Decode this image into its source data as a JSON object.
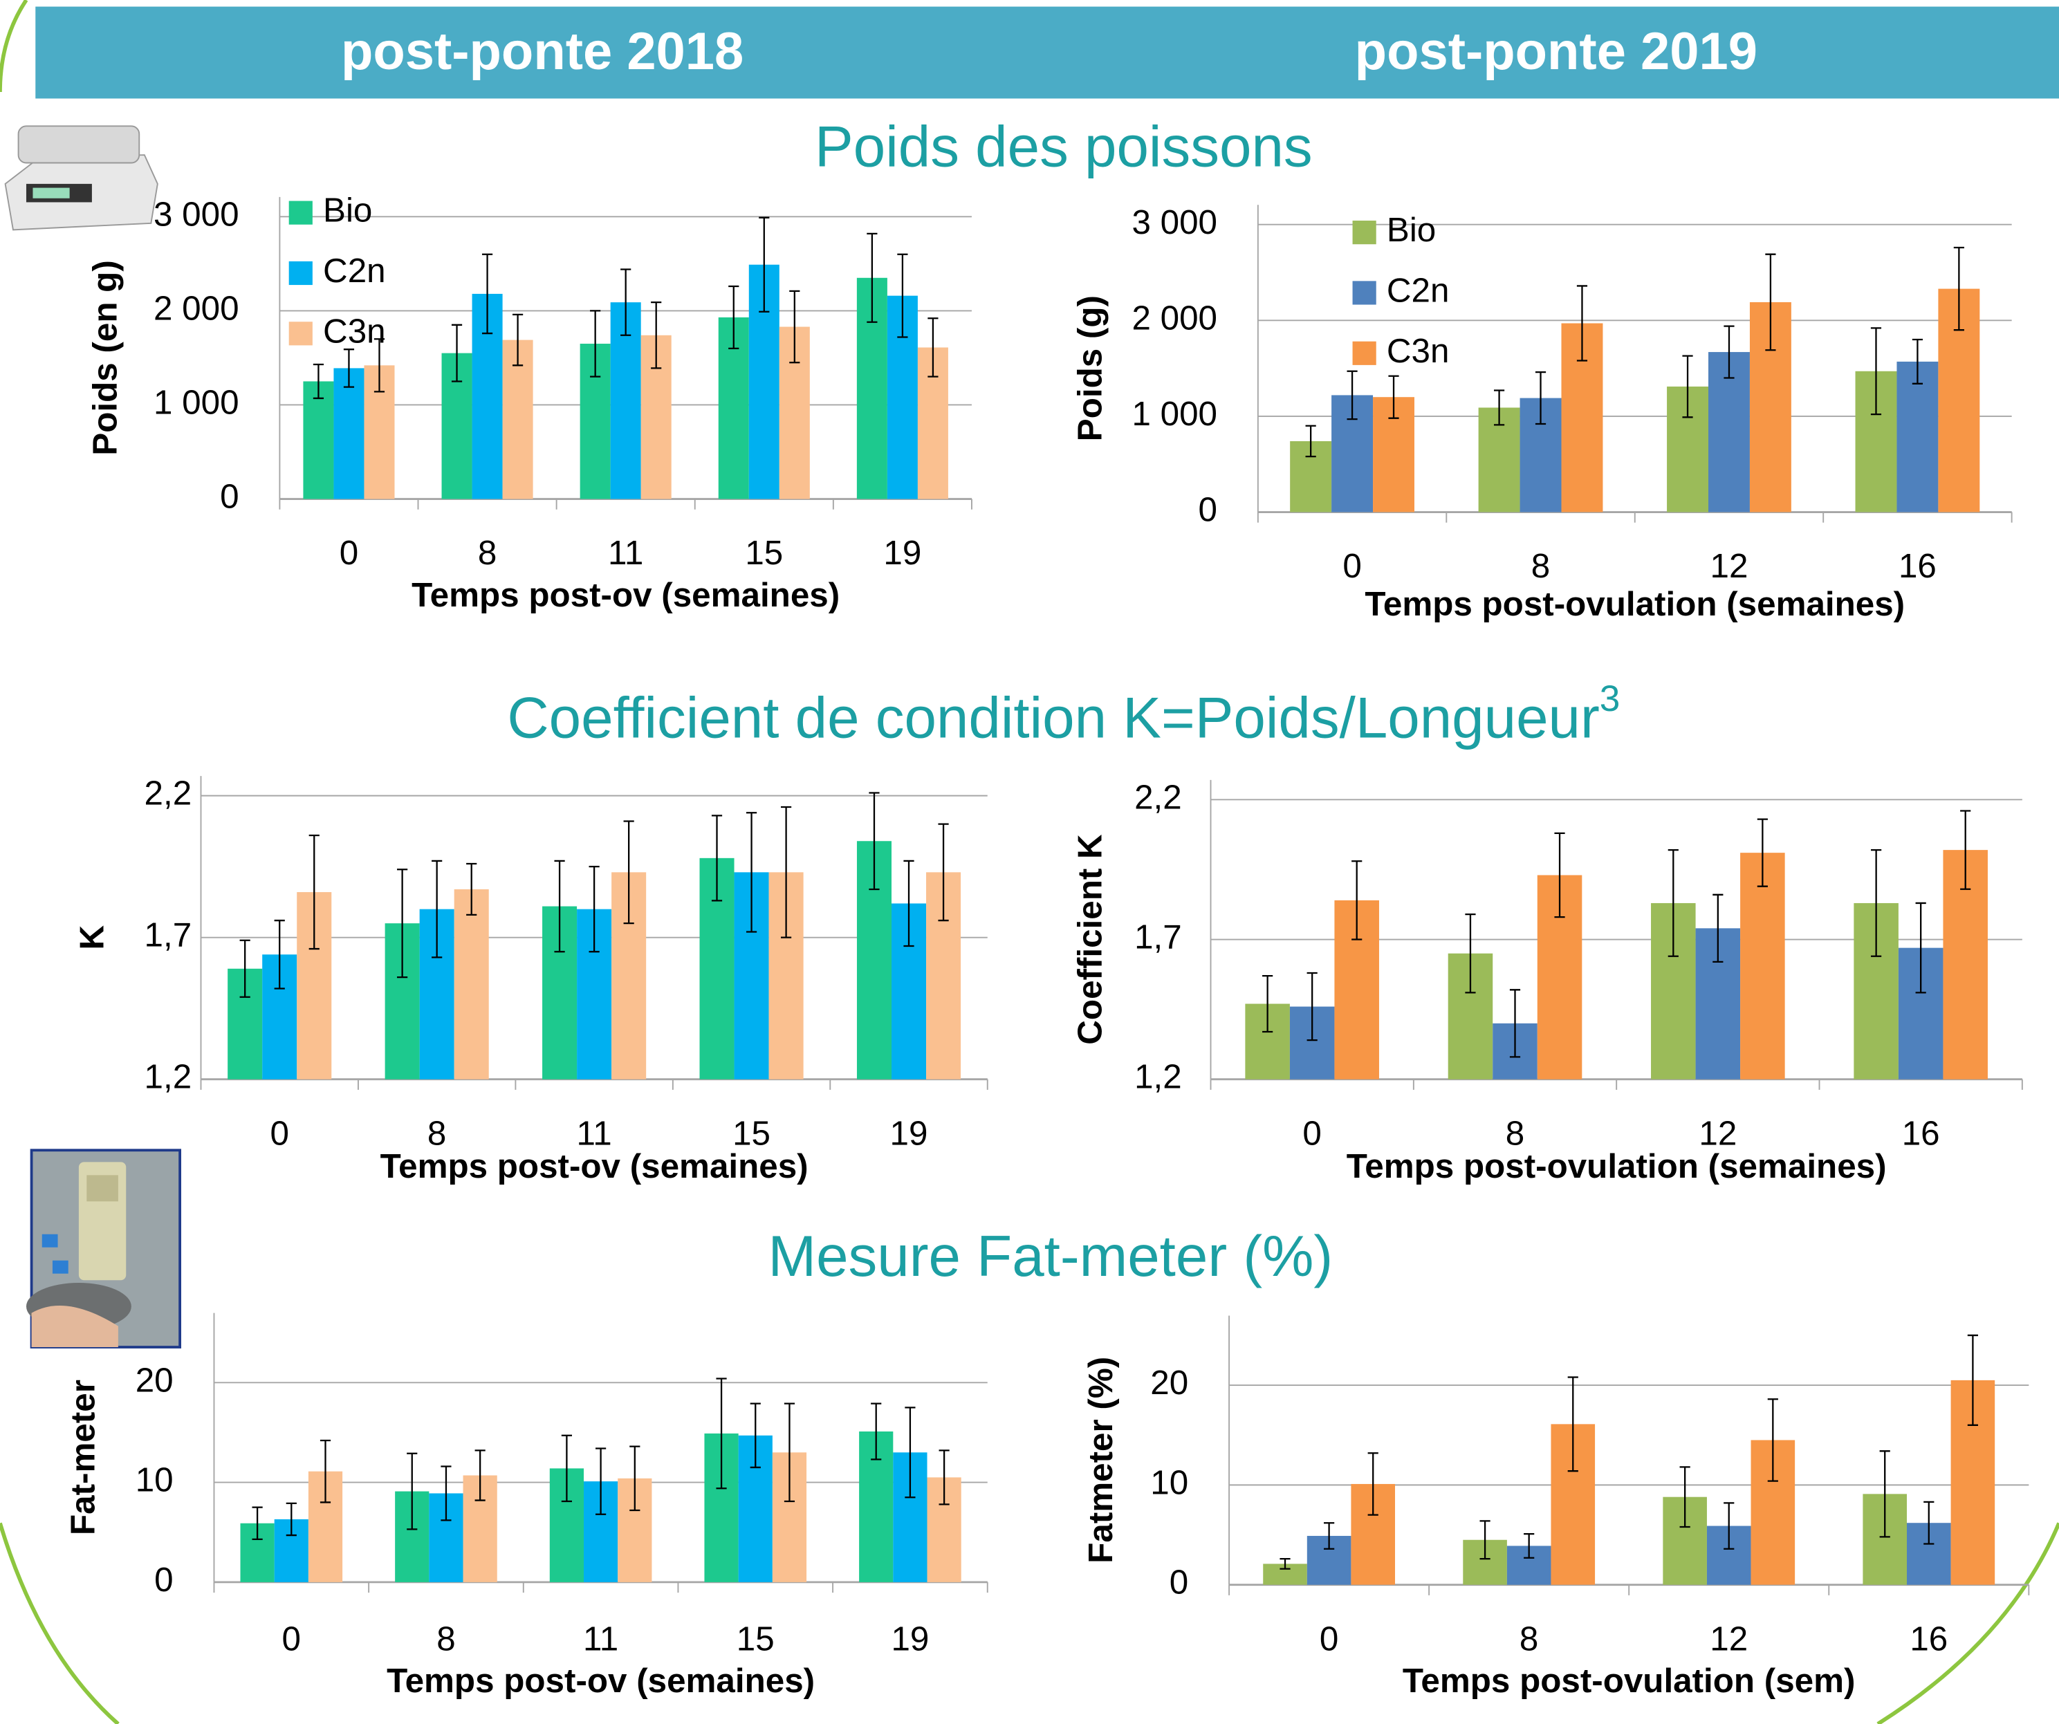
{
  "header": {
    "left": "post-ponte 2018",
    "right": "post-ponte 2019"
  },
  "sections": [
    {
      "title": "Poids des poissons"
    },
    {
      "title": "Coefficient de condition K=Poids/Longueur",
      "superscript": "3"
    },
    {
      "title": "Mesure Fat-meter (%)"
    }
  ],
  "chart_data": [
    {
      "type": "bar",
      "xlabel": "Temps post-ov (semaines)",
      "ylabel": "Poids (en g)",
      "categories": [
        "0",
        "8",
        "11",
        "15",
        "19"
      ],
      "series": [
        {
          "name": "Bio",
          "color": "#1dc98e",
          "values": [
            1250,
            1550,
            1650,
            1930,
            2350
          ],
          "errors": [
            180,
            300,
            350,
            330,
            470
          ]
        },
        {
          "name": "C2n",
          "color": "#00b0f0",
          "values": [
            1390,
            2180,
            2090,
            2490,
            2160
          ],
          "errors": [
            200,
            420,
            350,
            500,
            440
          ]
        },
        {
          "name": "C3n",
          "color": "#fac090",
          "values": [
            1420,
            1690,
            1740,
            1830,
            1610
          ],
          "errors": [
            280,
            270,
            350,
            380,
            310
          ]
        }
      ],
      "ylim": [
        0,
        3000
      ],
      "yticks": [
        0,
        {
          "value": 1000,
          "label": "1 000"
        },
        {
          "value": 2000,
          "label": "2 000"
        },
        {
          "value": 3000,
          "label": "3 000"
        }
      ],
      "grid": true,
      "legend": "top-left"
    },
    {
      "type": "bar",
      "xlabel": "Temps post-ovulation (semaines)",
      "ylabel": "Poids (g)",
      "categories": [
        "0",
        "8",
        "12",
        "16"
      ],
      "series": [
        {
          "name": "Bio",
          "color": "#9bbb59",
          "values": [
            740,
            1090,
            1310,
            1470
          ],
          "errors": [
            160,
            180,
            320,
            450
          ]
        },
        {
          "name": "C2n",
          "color": "#4f81bd",
          "values": [
            1220,
            1190,
            1670,
            1570
          ],
          "errors": [
            250,
            270,
            270,
            230
          ]
        },
        {
          "name": "C3n",
          "color": "#f79646",
          "values": [
            1200,
            1970,
            2190,
            2330
          ],
          "errors": [
            220,
            390,
            500,
            430
          ]
        }
      ],
      "ylim": [
        0,
        3000
      ],
      "yticks": [
        0,
        {
          "value": 1000,
          "label": "1 000"
        },
        {
          "value": 2000,
          "label": "2 000"
        },
        {
          "value": 3000,
          "label": "3 000"
        }
      ],
      "grid": true,
      "legend": "top-left"
    },
    {
      "type": "bar",
      "xlabel": "Temps post-ov (semaines)",
      "ylabel": "K",
      "categories": [
        "0",
        "8",
        "11",
        "15",
        "19"
      ],
      "series": [
        {
          "color": "#1dc98e",
          "values": [
            1.59,
            1.75,
            1.81,
            1.98,
            2.04
          ],
          "errors": [
            0.1,
            0.19,
            0.16,
            0.15,
            0.17
          ]
        },
        {
          "color": "#00b0f0",
          "values": [
            1.64,
            1.8,
            1.8,
            1.93,
            1.82
          ],
          "errors": [
            0.12,
            0.17,
            0.15,
            0.21,
            0.15
          ]
        },
        {
          "color": "#fac090",
          "values": [
            1.86,
            1.87,
            1.93,
            1.93,
            1.93
          ],
          "errors": [
            0.2,
            0.09,
            0.18,
            0.23,
            0.17
          ]
        }
      ],
      "ylim": [
        1.2,
        2.2
      ],
      "yticks": [
        {
          "value": 1.2,
          "label": "1,2"
        },
        {
          "value": 1.7,
          "label": "1,7"
        },
        {
          "value": 2.2,
          "label": "2,2"
        }
      ],
      "grid": true
    },
    {
      "type": "bar",
      "xlabel": "Temps post-ovulation (semaines)",
      "ylabel": "Coefficient K",
      "categories": [
        "0",
        "8",
        "12",
        "16"
      ],
      "series": [
        {
          "color": "#9bbb59",
          "values": [
            1.47,
            1.65,
            1.83,
            1.83
          ],
          "errors": [
            0.1,
            0.14,
            0.19,
            0.19
          ]
        },
        {
          "color": "#4f81bd",
          "values": [
            1.46,
            1.4,
            1.74,
            1.67
          ],
          "errors": [
            0.12,
            0.12,
            0.12,
            0.16
          ]
        },
        {
          "color": "#f79646",
          "values": [
            1.84,
            1.93,
            2.01,
            2.02
          ],
          "errors": [
            0.14,
            0.15,
            0.12,
            0.14
          ]
        }
      ],
      "ylim": [
        1.2,
        2.2
      ],
      "yticks": [
        {
          "value": 1.2,
          "label": "1,2"
        },
        {
          "value": 1.7,
          "label": "1,7"
        },
        {
          "value": 2.2,
          "label": "2,2"
        }
      ],
      "grid": true
    },
    {
      "type": "bar",
      "xlabel": "Temps post-ov (semaines)",
      "ylabel": "Fat-meter",
      "categories": [
        "0",
        "8",
        "11",
        "15",
        "19"
      ],
      "series": [
        {
          "color": "#1dc98e",
          "values": [
            5.9,
            9.1,
            11.4,
            14.9,
            15.1
          ],
          "errors": [
            1.6,
            3.8,
            3.3,
            5.5,
            2.8
          ]
        },
        {
          "color": "#00b0f0",
          "values": [
            6.3,
            8.9,
            10.1,
            14.7,
            13.0
          ],
          "errors": [
            1.6,
            2.7,
            3.3,
            3.2,
            4.5
          ]
        },
        {
          "color": "#fac090",
          "values": [
            11.1,
            10.7,
            10.4,
            13.0,
            10.5
          ],
          "errors": [
            3.1,
            2.5,
            3.2,
            4.9,
            2.7
          ]
        }
      ],
      "ylim": [
        0,
        25
      ],
      "yticks": [
        0,
        10,
        20
      ],
      "grid": true
    },
    {
      "type": "bar",
      "xlabel": "Temps post-ovulation (sem)",
      "ylabel": "Fatmeter (%)",
      "categories": [
        "0",
        "8",
        "12",
        "16"
      ],
      "series": [
        {
          "color": "#9bbb59",
          "values": [
            2.1,
            4.5,
            8.8,
            9.1
          ],
          "errors": [
            0.5,
            1.9,
            3.0,
            4.3
          ]
        },
        {
          "color": "#4f81bd",
          "values": [
            4.9,
            3.9,
            5.9,
            6.2
          ],
          "errors": [
            1.3,
            1.2,
            2.3,
            2.1
          ]
        },
        {
          "color": "#f79646",
          "values": [
            10.1,
            16.1,
            14.5,
            20.5
          ],
          "errors": [
            3.1,
            4.7,
            4.1,
            4.5
          ]
        }
      ],
      "ylim": [
        0,
        25
      ],
      "yticks": [
        0,
        10,
        20
      ],
      "grid": true
    }
  ]
}
